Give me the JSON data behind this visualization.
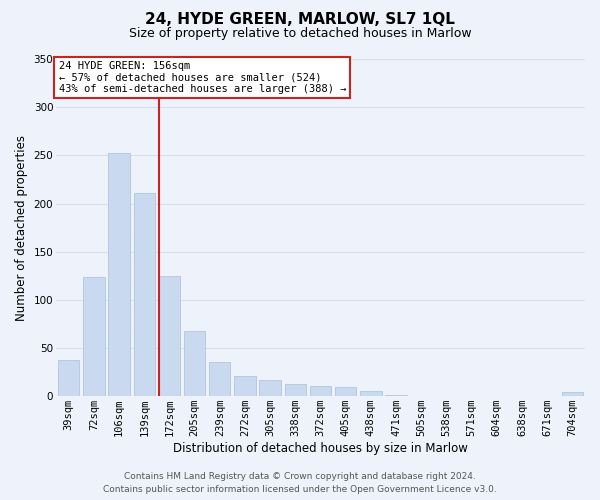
{
  "title": "24, HYDE GREEN, MARLOW, SL7 1QL",
  "subtitle": "Size of property relative to detached houses in Marlow",
  "xlabel": "Distribution of detached houses by size in Marlow",
  "ylabel": "Number of detached properties",
  "categories": [
    "39sqm",
    "72sqm",
    "106sqm",
    "139sqm",
    "172sqm",
    "205sqm",
    "239sqm",
    "272sqm",
    "305sqm",
    "338sqm",
    "372sqm",
    "405sqm",
    "438sqm",
    "471sqm",
    "505sqm",
    "538sqm",
    "571sqm",
    "604sqm",
    "638sqm",
    "671sqm",
    "704sqm"
  ],
  "values": [
    38,
    124,
    252,
    211,
    125,
    68,
    35,
    21,
    17,
    13,
    11,
    10,
    5,
    1,
    0,
    0,
    0,
    0,
    0,
    0,
    4
  ],
  "bar_color": "#c8d9f0",
  "bar_edge_color": "#a8bfd8",
  "highlight_color": "#cc2222",
  "ylim": [
    0,
    350
  ],
  "yticks": [
    0,
    50,
    100,
    150,
    200,
    250,
    300,
    350
  ],
  "annotation_title": "24 HYDE GREEN: 156sqm",
  "annotation_line1": "← 57% of detached houses are smaller (524)",
  "annotation_line2": "43% of semi-detached houses are larger (388) →",
  "annotation_box_color": "#ffffff",
  "annotation_box_edge": "#cc2222",
  "footer_line1": "Contains HM Land Registry data © Crown copyright and database right 2024.",
  "footer_line2": "Contains public sector information licensed under the Open Government Licence v3.0.",
  "background_color": "#eef3fb",
  "grid_color": "#d4dff0",
  "title_fontsize": 11,
  "subtitle_fontsize": 9,
  "axis_label_fontsize": 8.5,
  "tick_fontsize": 7.5,
  "footer_fontsize": 6.5,
  "red_line_bar_index": 4
}
